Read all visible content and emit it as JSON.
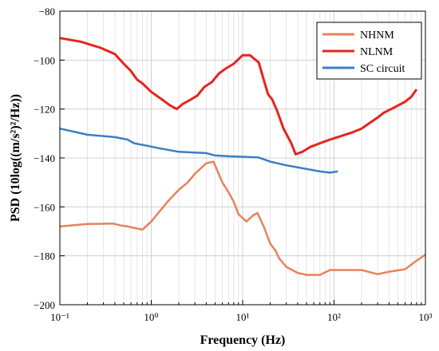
{
  "chart_data": {
    "type": "line",
    "xlabel": "Frequency (Hz)",
    "ylabel": "PSD (10log((m/s²)²/Hz))",
    "xscale": "log",
    "xlim": [
      0.1,
      1000
    ],
    "ylim": [
      -200,
      -80
    ],
    "grid": "on",
    "legend_position": "top-right",
    "x_tick_labels": [
      "10⁻¹",
      "10⁰",
      "10¹",
      "10²",
      "10³"
    ],
    "y_ticks": [
      -200,
      -180,
      -160,
      -140,
      -120,
      -100,
      -80
    ],
    "y_tick_labels": [
      "−200",
      "−180",
      "−160",
      "−140",
      "−120",
      "−100",
      "−80"
    ],
    "series": [
      {
        "name": "NHNM",
        "color": "#e8825a",
        "points": [
          [
            0.1,
            -168
          ],
          [
            0.2,
            -167
          ],
          [
            0.38,
            -166.8
          ],
          [
            0.45,
            -167.5
          ],
          [
            0.55,
            -168
          ],
          [
            0.8,
            -169.3
          ],
          [
            1.0,
            -166
          ],
          [
            1.5,
            -158
          ],
          [
            2.0,
            -153
          ],
          [
            2.5,
            -150
          ],
          [
            3.0,
            -146.5
          ],
          [
            4.0,
            -142.2
          ],
          [
            4.8,
            -141.5
          ],
          [
            6.0,
            -150
          ],
          [
            7.0,
            -154
          ],
          [
            8.0,
            -158
          ],
          [
            9.0,
            -163
          ],
          [
            11.0,
            -166
          ],
          [
            13.0,
            -163.5
          ],
          [
            14.5,
            -162.5
          ],
          [
            17.0,
            -168
          ],
          [
            20.0,
            -175
          ],
          [
            23.0,
            -178
          ],
          [
            25.0,
            -181
          ],
          [
            30.0,
            -184.5
          ],
          [
            40.0,
            -187
          ],
          [
            50.0,
            -187.8
          ],
          [
            70.0,
            -187.8
          ],
          [
            90.0,
            -185.8
          ],
          [
            200.0,
            -185.8
          ],
          [
            300.0,
            -187.5
          ],
          [
            400.0,
            -186.5
          ],
          [
            600.0,
            -185.5
          ],
          [
            800.0,
            -182
          ],
          [
            1000.0,
            -179.5
          ]
        ]
      },
      {
        "name": "NLNM",
        "color": "#e8231d",
        "points": [
          [
            0.1,
            -91
          ],
          [
            0.17,
            -92.5
          ],
          [
            0.28,
            -95
          ],
          [
            0.4,
            -97.5
          ],
          [
            0.5,
            -101.5
          ],
          [
            0.6,
            -104.5
          ],
          [
            0.7,
            -108
          ],
          [
            0.8,
            -109.5
          ],
          [
            1.0,
            -113
          ],
          [
            1.3,
            -116
          ],
          [
            1.6,
            -118.5
          ],
          [
            1.9,
            -120
          ],
          [
            2.2,
            -118
          ],
          [
            2.6,
            -116.5
          ],
          [
            3.2,
            -114.5
          ],
          [
            3.8,
            -111
          ],
          [
            4.6,
            -109
          ],
          [
            5.5,
            -105.5
          ],
          [
            6.5,
            -103.5
          ],
          [
            8.0,
            -101.5
          ],
          [
            10.0,
            -98
          ],
          [
            12.0,
            -98
          ],
          [
            15.0,
            -101
          ],
          [
            17.0,
            -108
          ],
          [
            19.0,
            -114
          ],
          [
            21.0,
            -116
          ],
          [
            24.0,
            -121
          ],
          [
            28.0,
            -128
          ],
          [
            34.0,
            -134
          ],
          [
            38.0,
            -138.5
          ],
          [
            45.0,
            -137.5
          ],
          [
            55.0,
            -135.5
          ],
          [
            70.0,
            -134
          ],
          [
            90.0,
            -132.5
          ],
          [
            120.0,
            -131
          ],
          [
            160.0,
            -129.5
          ],
          [
            200.0,
            -128
          ],
          [
            250.0,
            -125.5
          ],
          [
            300.0,
            -123.5
          ],
          [
            350.0,
            -121.5
          ],
          [
            450.0,
            -119.5
          ],
          [
            600.0,
            -117
          ],
          [
            700.0,
            -115
          ],
          [
            800.0,
            -112
          ]
        ]
      },
      {
        "name": "SC circuit",
        "color": "#3a7fc3",
        "points": [
          [
            0.1,
            -128
          ],
          [
            0.2,
            -130.5
          ],
          [
            0.4,
            -131.5
          ],
          [
            0.55,
            -132.5
          ],
          [
            0.65,
            -134
          ],
          [
            0.9,
            -135
          ],
          [
            1.2,
            -136
          ],
          [
            2.0,
            -137.5
          ],
          [
            3.0,
            -137.8
          ],
          [
            4.0,
            -138
          ],
          [
            5.0,
            -139
          ],
          [
            7.0,
            -139.3
          ],
          [
            10.0,
            -139.5
          ],
          [
            15.0,
            -139.8
          ],
          [
            20.0,
            -141.5
          ],
          [
            30.0,
            -143
          ],
          [
            50.0,
            -144.5
          ],
          [
            70.0,
            -145.5
          ],
          [
            90.0,
            -146
          ],
          [
            110.0,
            -145.5
          ]
        ]
      }
    ]
  }
}
